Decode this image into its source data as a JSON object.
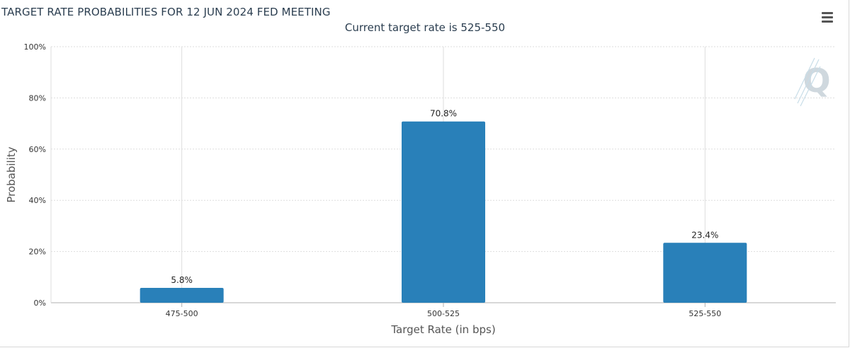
{
  "header": {
    "title": "TARGET RATE PROBABILITIES FOR 12 JUN 2024 FED MEETING",
    "subtitle": "Current target rate is 525-550",
    "menu_icon": "hamburger-menu-icon"
  },
  "watermark": {
    "letter": "Q"
  },
  "colors": {
    "bar": "#2980b9",
    "grid": "#dddddd",
    "axis": "#b0b0b0",
    "text": "#2b3e50"
  },
  "chart_data": {
    "type": "bar",
    "title": "TARGET RATE PROBABILITIES FOR 12 JUN 2024 FED MEETING",
    "subtitle": "Current target rate is 525-550",
    "xlabel": "Target Rate (in bps)",
    "ylabel": "Probability",
    "categories": [
      "475-500",
      "500-525",
      "525-550"
    ],
    "values": [
      5.8,
      70.8,
      23.4
    ],
    "data_labels": [
      "5.8%",
      "70.8%",
      "23.4%"
    ],
    "ylim": [
      0,
      100
    ],
    "yticks": [
      0,
      20,
      40,
      60,
      80,
      100
    ],
    "ytick_labels": [
      "0%",
      "20%",
      "40%",
      "60%",
      "80%",
      "100%"
    ],
    "grid": true,
    "legend": "none"
  }
}
